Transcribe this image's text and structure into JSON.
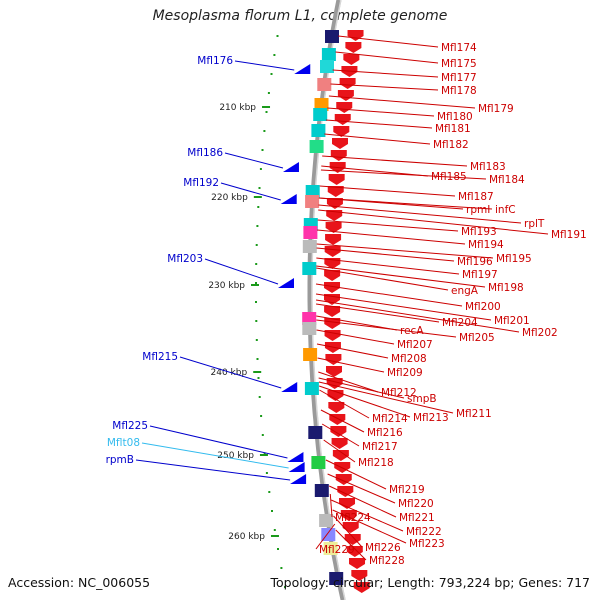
{
  "title": "Mesoplasma florum L1, complete genome",
  "footer": {
    "accession": "Accession: NC_006055",
    "summary": "Topology: circular; Length: 793,224 bp; Genes: 717"
  },
  "colors": {
    "backbone": "#9a9a9a",
    "forward_gene": "#e8141a",
    "left_label": "#0000cc",
    "right_label": "#cc0000",
    "rna_label": "#33bbee",
    "kbp_tick": "#1a9a1a"
  },
  "kbp_ticks": [
    {
      "label": "210 kbp"
    },
    {
      "label": "220 kbp"
    },
    {
      "label": "230 kbp"
    },
    {
      "label": "240 kbp"
    },
    {
      "label": "250 kbp"
    },
    {
      "label": "260 kbp"
    }
  ],
  "left_labels": [
    {
      "text": "Mfl176",
      "type": "cds"
    },
    {
      "text": "Mfl186",
      "type": "cds"
    },
    {
      "text": "Mfl192",
      "type": "cds"
    },
    {
      "text": "Mfl203",
      "type": "cds"
    },
    {
      "text": "Mfl215",
      "type": "cds"
    },
    {
      "text": "Mfl225",
      "type": "cds"
    },
    {
      "text": "Mflt08",
      "type": "trna"
    },
    {
      "text": "rpmB",
      "type": "cds"
    }
  ],
  "right_labels": [
    "Mfl174",
    "Mfl175",
    "Mfl177",
    "Mfl178",
    "Mfl179",
    "Mfl180",
    "Mfl181",
    "Mfl182",
    "Mfl183",
    "Mfl185",
    "Mfl184",
    "Mfl187",
    "rpmI",
    "infC",
    "rplT",
    "Mfl191",
    "Mfl193",
    "Mfl194",
    "Mfl196",
    "Mfl195",
    "Mfl197",
    "engA",
    "Mfl198",
    "Mfl200",
    "Mfl201",
    "Mfl204",
    "Mfl202",
    "recA",
    "Mfl205",
    "Mfl207",
    "Mfl208",
    "Mfl209",
    "Mfl212",
    "smpB",
    "Mfl214",
    "Mfl213",
    "Mfl211",
    "Mfl216",
    "Mfl217",
    "Mfl218",
    "Mfl219",
    "Mfl220",
    "Mfl221",
    "Mfl224",
    "Mfl222",
    "Mfl223",
    "Mfl226",
    "Mfl229",
    "Mfl228"
  ],
  "cog_blocks": [
    {
      "color": "#1a1a6e"
    },
    {
      "color": "#00cccc"
    },
    {
      "color": "#20d8d8"
    },
    {
      "color": "#f08080"
    },
    {
      "color": "#ff9900"
    },
    {
      "color": "#00cccc"
    },
    {
      "color": "#00cccc"
    },
    {
      "color": "#22dd88"
    },
    {
      "color": "#00cccc"
    },
    {
      "color": "#f08080"
    },
    {
      "color": "#00cccc"
    },
    {
      "color": "#ff33aa"
    },
    {
      "color": "#bbbbbb"
    },
    {
      "color": "#00cccc"
    },
    {
      "color": "#ff33aa"
    },
    {
      "color": "#bbbbbb"
    },
    {
      "color": "#ff9900"
    },
    {
      "color": "#00cccc"
    },
    {
      "color": "#1a1a6e"
    },
    {
      "color": "#22cc44"
    },
    {
      "color": "#1a1a6e"
    },
    {
      "color": "#bbbbbb"
    },
    {
      "color": "#8888ff"
    },
    {
      "color": "#eeee99"
    },
    {
      "color": "#1a1a6e"
    }
  ]
}
